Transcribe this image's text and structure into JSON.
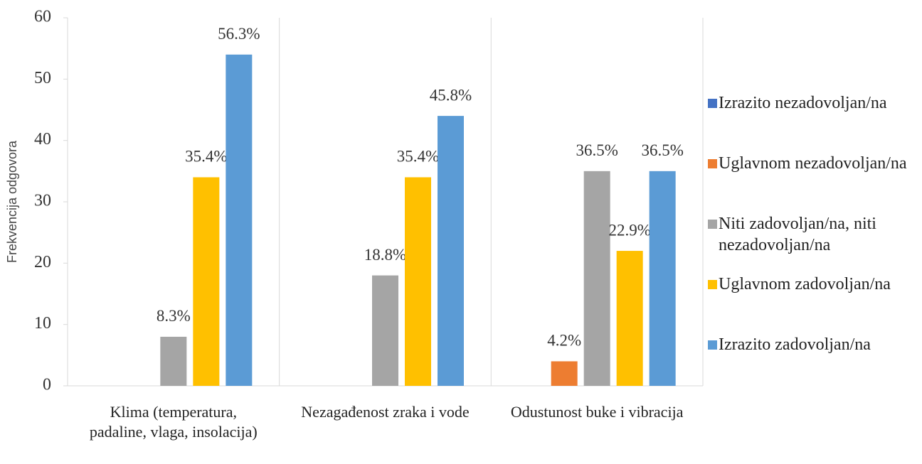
{
  "chart_data": {
    "type": "bar",
    "y_label": "Frekvencija odgovora",
    "categories": [
      "Klima (temperatura, padaline, vlaga, insolacija)",
      "Nezagađenost zraka i vode",
      "Odustunost buke i vibracija"
    ],
    "series": [
      {
        "name": "Izrazito nezadovoljan/na",
        "color": "#4472c4",
        "values": [
          0,
          0,
          0
        ],
        "value_labels": [
          null,
          null,
          null
        ]
      },
      {
        "name": "Uglavnom nezadovoljan/na",
        "color": "#ed7d31",
        "values": [
          0,
          0,
          4
        ],
        "value_labels": [
          null,
          null,
          "4.2%"
        ]
      },
      {
        "name": "Niti zadovoljan/na, niti nezadovoljan/na",
        "color": "#a5a5a5",
        "values": [
          8,
          18,
          35
        ],
        "value_labels": [
          "8.3%",
          "18.8%",
          "36.5%"
        ]
      },
      {
        "name": "Uglavnom zadovoljan/na",
        "color": "#ffc000",
        "values": [
          34,
          34,
          22
        ],
        "value_labels": [
          "35.4%",
          "35.4%",
          "22.9%"
        ]
      },
      {
        "name": "Izrazito zadovoljan/na",
        "color": "#5b9bd5",
        "values": [
          54,
          44,
          35
        ],
        "value_labels": [
          "56.3%",
          "45.8%",
          "36.5%"
        ]
      }
    ],
    "ylim": [
      0,
      60
    ],
    "yticks": [
      0,
      10,
      20,
      30,
      40,
      50,
      60
    ],
    "legend": "right"
  }
}
